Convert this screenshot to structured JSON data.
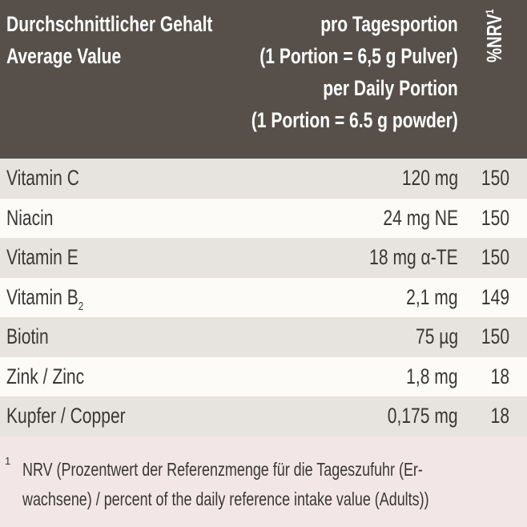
{
  "header": {
    "left_line1": "Durchschnittlicher Gehalt",
    "left_line2": "Average Value",
    "right_line1": "pro Tagesportion",
    "right_line2": "(1 Portion = 6,5 g Pulver)",
    "right_line3": "per Daily Portion",
    "right_line4": "(1 Portion = 6.5 g powder)",
    "nrv_label": "%NRV",
    "nrv_sup": "1"
  },
  "rows": [
    {
      "name": "Vitamin C",
      "amount": "120 mg",
      "nrv": "150"
    },
    {
      "name": "Niacin",
      "amount": "24 mg NE",
      "nrv": "150"
    },
    {
      "name": "Vitamin E",
      "amount": "18 mg α-TE",
      "nrv": "150"
    },
    {
      "name": "Vitamin B",
      "name_sub": "2",
      "amount": "2,1 mg",
      "nrv": "149"
    },
    {
      "name": "Biotin",
      "amount": "75 µg",
      "nrv": "150"
    },
    {
      "name": "Zink / Zinc",
      "amount": "1,8 mg",
      "nrv": "18"
    },
    {
      "name": "Kupfer / Copper",
      "amount": "0,175 mg",
      "nrv": "18"
    }
  ],
  "footnote": {
    "mark": "1",
    "line1": "NRV (Prozentwert der Referenzmenge für die Tageszufuhr (Er-",
    "line2": "wachsene) / percent of the daily reference intake value (Adults))"
  },
  "colors": {
    "header_bg": "#57504a",
    "row_shade": "#e7e4df",
    "row_light": "#fcfbf8",
    "page_bg": "#f2e6e6"
  }
}
